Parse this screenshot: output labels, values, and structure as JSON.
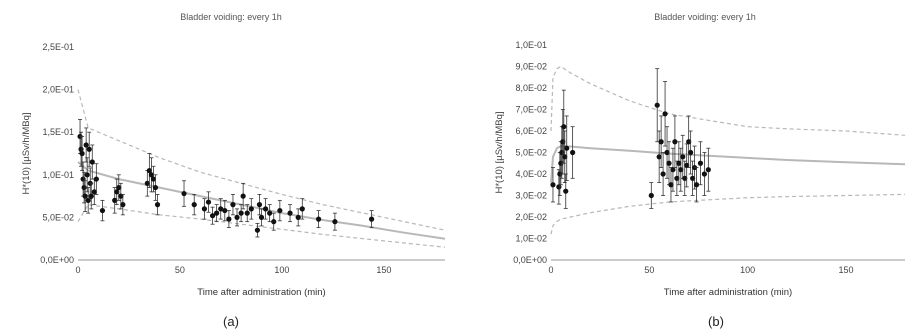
{
  "chart_data": [
    {
      "type": "scatter",
      "panel_label": "(a)",
      "title": "Bladder voiding: every 1h",
      "xlabel": "Time after administration (min)",
      "ylabel": "H*(10) [µSv/h/MBq]",
      "xlim": [
        0,
        180
      ],
      "ylim": [
        0,
        0.25
      ],
      "x_ticks": [
        0,
        50,
        100,
        150
      ],
      "x_tick_labels": [
        "0",
        "50",
        "100",
        "150"
      ],
      "y_ticks": [
        0,
        0.05,
        0.1,
        0.15,
        0.2,
        0.25
      ],
      "y_tick_labels": [
        "0,0E+00",
        "5,0E-02",
        "1,0E-01",
        "1,5E-01",
        "2,0E-01",
        "2,5E-01"
      ],
      "grid": false,
      "colors": {
        "points": "#111111",
        "model": "#b8b8b8",
        "bounds": "#b8b8b8"
      },
      "model": {
        "x": [
          0,
          5,
          20,
          40,
          60,
          80,
          100,
          120,
          140,
          160,
          180
        ],
        "y": [
          0.115,
          0.105,
          0.095,
          0.085,
          0.075,
          0.065,
          0.055,
          0.047,
          0.04,
          0.032,
          0.025
        ]
      },
      "model_upper": {
        "x": [
          0,
          5,
          20,
          40,
          60,
          80,
          100,
          120,
          140,
          160,
          180
        ],
        "y": [
          0.2,
          0.155,
          0.14,
          0.12,
          0.103,
          0.09,
          0.077,
          0.065,
          0.055,
          0.045,
          0.035
        ]
      },
      "model_lower": {
        "x": [
          0,
          5,
          20,
          40,
          60,
          80,
          100,
          120,
          140,
          160,
          180
        ],
        "y": [
          0.045,
          0.065,
          0.06,
          0.053,
          0.048,
          0.042,
          0.036,
          0.03,
          0.025,
          0.02,
          0.015
        ]
      },
      "points": [
        {
          "x": 1,
          "y": 0.145,
          "err": 0.02
        },
        {
          "x": 1.5,
          "y": 0.13,
          "err": 0.02
        },
        {
          "x": 2,
          "y": 0.125,
          "err": 0.02
        },
        {
          "x": 2.5,
          "y": 0.095,
          "err": 0.02
        },
        {
          "x": 3,
          "y": 0.085,
          "err": 0.018
        },
        {
          "x": 3.5,
          "y": 0.075,
          "err": 0.018
        },
        {
          "x": 4,
          "y": 0.135,
          "err": 0.02
        },
        {
          "x": 4.5,
          "y": 0.1,
          "err": 0.02
        },
        {
          "x": 5,
          "y": 0.07,
          "err": 0.015
        },
        {
          "x": 5.5,
          "y": 0.13,
          "err": 0.02
        },
        {
          "x": 6,
          "y": 0.09,
          "err": 0.018
        },
        {
          "x": 6.5,
          "y": 0.075,
          "err": 0.015
        },
        {
          "x": 7,
          "y": 0.115,
          "err": 0.02
        },
        {
          "x": 8,
          "y": 0.08,
          "err": 0.015
        },
        {
          "x": 9,
          "y": 0.095,
          "err": 0.018
        },
        {
          "x": 12,
          "y": 0.058,
          "err": 0.012
        },
        {
          "x": 18,
          "y": 0.07,
          "err": 0.015
        },
        {
          "x": 19,
          "y": 0.08,
          "err": 0.015
        },
        {
          "x": 20,
          "y": 0.085,
          "err": 0.015
        },
        {
          "x": 21,
          "y": 0.075,
          "err": 0.015
        },
        {
          "x": 22,
          "y": 0.065,
          "err": 0.012
        },
        {
          "x": 34,
          "y": 0.09,
          "err": 0.015
        },
        {
          "x": 35,
          "y": 0.105,
          "err": 0.02
        },
        {
          "x": 36,
          "y": 0.1,
          "err": 0.02
        },
        {
          "x": 37,
          "y": 0.095,
          "err": 0.015
        },
        {
          "x": 38,
          "y": 0.085,
          "err": 0.015
        },
        {
          "x": 39,
          "y": 0.065,
          "err": 0.012
        },
        {
          "x": 52,
          "y": 0.078,
          "err": 0.015
        },
        {
          "x": 57,
          "y": 0.065,
          "err": 0.012
        },
        {
          "x": 62,
          "y": 0.06,
          "err": 0.012
        },
        {
          "x": 64,
          "y": 0.068,
          "err": 0.012
        },
        {
          "x": 66,
          "y": 0.052,
          "err": 0.01
        },
        {
          "x": 68,
          "y": 0.055,
          "err": 0.01
        },
        {
          "x": 70,
          "y": 0.06,
          "err": 0.012
        },
        {
          "x": 72,
          "y": 0.058,
          "err": 0.012
        },
        {
          "x": 74,
          "y": 0.048,
          "err": 0.01
        },
        {
          "x": 76,
          "y": 0.065,
          "err": 0.012
        },
        {
          "x": 78,
          "y": 0.05,
          "err": 0.01
        },
        {
          "x": 80,
          "y": 0.055,
          "err": 0.01
        },
        {
          "x": 81,
          "y": 0.075,
          "err": 0.015
        },
        {
          "x": 83,
          "y": 0.055,
          "err": 0.01
        },
        {
          "x": 85,
          "y": 0.06,
          "err": 0.012
        },
        {
          "x": 88,
          "y": 0.035,
          "err": 0.008
        },
        {
          "x": 89,
          "y": 0.065,
          "err": 0.012
        },
        {
          "x": 90,
          "y": 0.05,
          "err": 0.01
        },
        {
          "x": 92,
          "y": 0.06,
          "err": 0.012
        },
        {
          "x": 94,
          "y": 0.055,
          "err": 0.01
        },
        {
          "x": 96,
          "y": 0.045,
          "err": 0.01
        },
        {
          "x": 99,
          "y": 0.058,
          "err": 0.012
        },
        {
          "x": 104,
          "y": 0.055,
          "err": 0.01
        },
        {
          "x": 108,
          "y": 0.05,
          "err": 0.01
        },
        {
          "x": 110,
          "y": 0.06,
          "err": 0.012
        },
        {
          "x": 118,
          "y": 0.048,
          "err": 0.01
        },
        {
          "x": 126,
          "y": 0.045,
          "err": 0.01
        },
        {
          "x": 144,
          "y": 0.048,
          "err": 0.01
        }
      ]
    },
    {
      "type": "scatter",
      "panel_label": "(b)",
      "title": "Bladder voiding: every 1h",
      "xlabel": "Time after administration (min)",
      "ylabel": "H*(10) [µSv/h/MBq]",
      "xlim": [
        0,
        180
      ],
      "ylim": [
        0,
        0.1
      ],
      "x_ticks": [
        0,
        50,
        100,
        150
      ],
      "x_tick_labels": [
        "0",
        "50",
        "100",
        "150"
      ],
      "y_ticks": [
        0,
        0.01,
        0.02,
        0.03,
        0.04,
        0.05,
        0.06,
        0.07,
        0.08,
        0.09,
        0.1
      ],
      "y_tick_labels": [
        "0,0E+00",
        "1,0E-02",
        "2,0E-02",
        "3,0E-02",
        "4,0E-02",
        "5,0E-02",
        "6,0E-02",
        "7,0E-02",
        "8,0E-02",
        "9,0E-02",
        "1,0E-01"
      ],
      "grid": false,
      "colors": {
        "points": "#111111",
        "model": "#b8b8b8",
        "bounds": "#b8b8b8"
      },
      "model": {
        "x": [
          0,
          1,
          3,
          5,
          10,
          20,
          40,
          60,
          80,
          100,
          120,
          150,
          180
        ],
        "y": [
          0.036,
          0.048,
          0.052,
          0.053,
          0.0528,
          0.052,
          0.0508,
          0.0495,
          0.0485,
          0.0475,
          0.0465,
          0.0455,
          0.0445
        ]
      },
      "model_upper": {
        "x": [
          0,
          1,
          3,
          5,
          10,
          20,
          40,
          60,
          80,
          100,
          120,
          150,
          180
        ],
        "y": [
          0.06,
          0.085,
          0.089,
          0.09,
          0.087,
          0.082,
          0.074,
          0.068,
          0.065,
          0.062,
          0.061,
          0.06,
          0.058
        ]
      },
      "model_lower": {
        "x": [
          0,
          1,
          3,
          5,
          10,
          20,
          40,
          60,
          80,
          100,
          120,
          150,
          180
        ],
        "y": [
          0.012,
          0.016,
          0.018,
          0.019,
          0.02,
          0.022,
          0.025,
          0.027,
          0.028,
          0.029,
          0.0295,
          0.03,
          0.0305
        ]
      },
      "points": [
        {
          "x": 1,
          "y": 0.035,
          "err": 0.008
        },
        {
          "x": 4,
          "y": 0.034,
          "err": 0.008
        },
        {
          "x": 4.5,
          "y": 0.04,
          "err": 0.01
        },
        {
          "x": 5,
          "y": 0.045,
          "err": 0.01
        },
        {
          "x": 5.5,
          "y": 0.05,
          "err": 0.012
        },
        {
          "x": 6,
          "y": 0.055,
          "err": 0.015
        },
        {
          "x": 6.5,
          "y": 0.062,
          "err": 0.017
        },
        {
          "x": 7,
          "y": 0.048,
          "err": 0.012
        },
        {
          "x": 7.5,
          "y": 0.032,
          "err": 0.008
        },
        {
          "x": 8,
          "y": 0.052,
          "err": 0.015
        },
        {
          "x": 11,
          "y": 0.05,
          "err": 0.012
        },
        {
          "x": 51,
          "y": 0.03,
          "err": 0.006
        },
        {
          "x": 54,
          "y": 0.072,
          "err": 0.017
        },
        {
          "x": 55,
          "y": 0.048,
          "err": 0.012
        },
        {
          "x": 56,
          "y": 0.055,
          "err": 0.012
        },
        {
          "x": 57,
          "y": 0.04,
          "err": 0.01
        },
        {
          "x": 58,
          "y": 0.068,
          "err": 0.015
        },
        {
          "x": 59,
          "y": 0.05,
          "err": 0.012
        },
        {
          "x": 60,
          "y": 0.045,
          "err": 0.01
        },
        {
          "x": 61,
          "y": 0.035,
          "err": 0.008
        },
        {
          "x": 62,
          "y": 0.042,
          "err": 0.01
        },
        {
          "x": 63,
          "y": 0.055,
          "err": 0.012
        },
        {
          "x": 64,
          "y": 0.038,
          "err": 0.008
        },
        {
          "x": 65,
          "y": 0.045,
          "err": 0.01
        },
        {
          "x": 66,
          "y": 0.042,
          "err": 0.01
        },
        {
          "x": 67,
          "y": 0.048,
          "err": 0.01
        },
        {
          "x": 68,
          "y": 0.038,
          "err": 0.008
        },
        {
          "x": 69,
          "y": 0.044,
          "err": 0.01
        },
        {
          "x": 70,
          "y": 0.055,
          "err": 0.012
        },
        {
          "x": 71,
          "y": 0.05,
          "err": 0.01
        },
        {
          "x": 72,
          "y": 0.038,
          "err": 0.008
        },
        {
          "x": 73,
          "y": 0.043,
          "err": 0.01
        },
        {
          "x": 74,
          "y": 0.035,
          "err": 0.008
        },
        {
          "x": 76,
          "y": 0.045,
          "err": 0.01
        },
        {
          "x": 78,
          "y": 0.04,
          "err": 0.01
        },
        {
          "x": 80,
          "y": 0.042,
          "err": 0.01
        }
      ]
    }
  ]
}
